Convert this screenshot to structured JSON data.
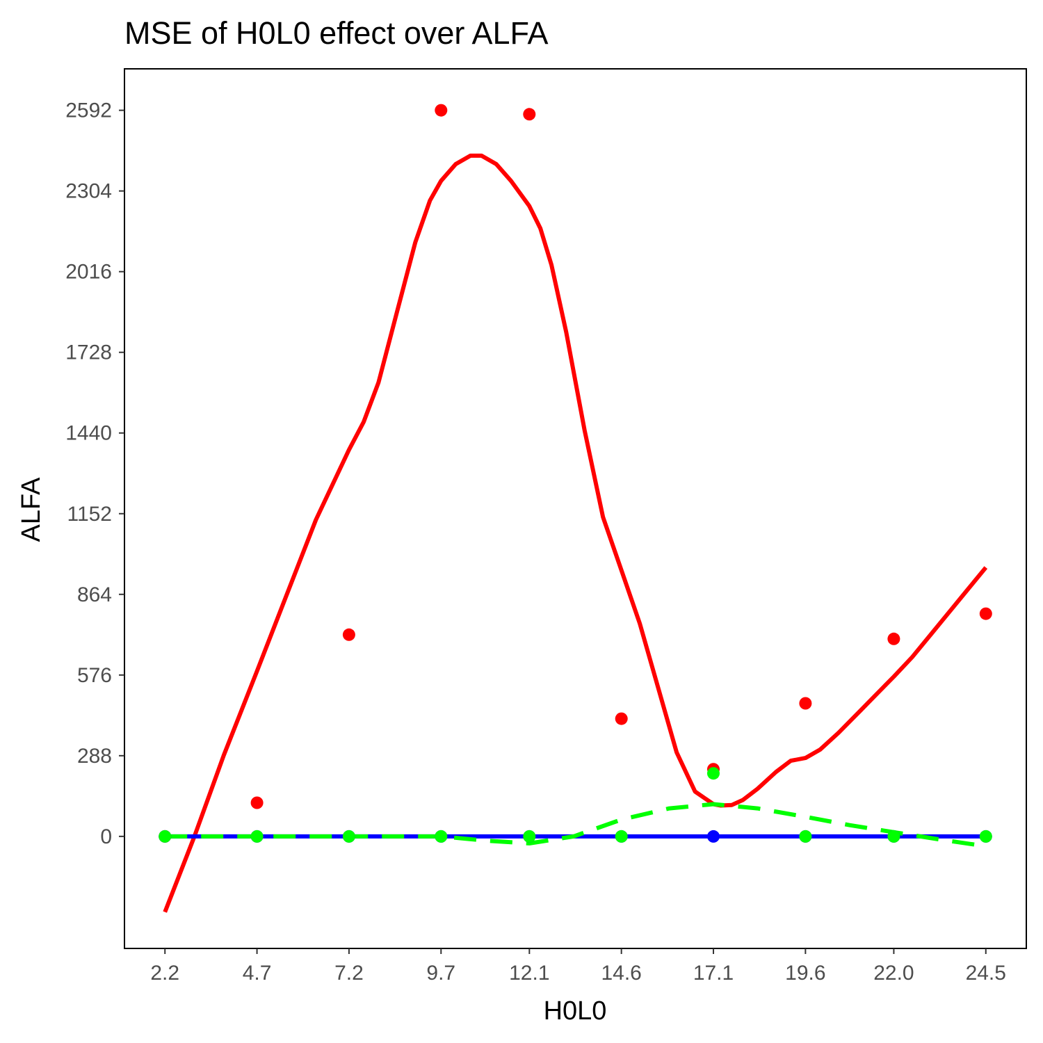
{
  "chart_data": {
    "type": "scatter",
    "title": "MSE of H0L0 effect over  ALFA",
    "xlabel": "H0L0",
    "ylabel": "ALFA",
    "x_ticks": [
      "2.2",
      "4.7",
      "7.2",
      "9.7",
      "12.1",
      "14.6",
      "17.1",
      "19.6",
      "22.0",
      "24.5"
    ],
    "y_ticks": [
      "0",
      "288",
      "576",
      "864",
      "1152",
      "1440",
      "1728",
      "2016",
      "2304",
      "2592"
    ],
    "xlim": [
      1.1,
      25.6
    ],
    "ylim": [
      -400,
      2740
    ],
    "grid": false,
    "legend": "none",
    "x": [
      2.2,
      4.7,
      7.2,
      9.7,
      12.1,
      14.6,
      17.1,
      19.6,
      22.0,
      24.5
    ],
    "series": [
      {
        "color": "#ff0000",
        "line_style": "solid",
        "points": [
          0,
          120,
          720,
          2592,
          2578,
          420,
          240,
          475,
          705,
          795
        ],
        "fit_x": [
          2.2,
          3.0,
          3.8,
          4.7,
          5.5,
          6.3,
          7.2,
          7.6,
          8.0,
          8.5,
          9.0,
          9.4,
          9.7,
          10.1,
          10.5,
          10.8,
          11.2,
          11.6,
          12.1,
          12.4,
          12.7,
          13.1,
          13.6,
          14.1,
          14.6,
          15.1,
          15.6,
          16.1,
          16.6,
          17.1,
          17.3,
          17.6,
          17.9,
          18.3,
          18.8,
          19.2,
          19.6,
          20.0,
          20.5,
          21.1,
          21.7,
          22.0,
          22.5,
          23.0,
          23.5,
          24.0,
          24.5
        ],
        "fit_y": [
          -270,
          0,
          290,
          590,
          860,
          1130,
          1380,
          1480,
          1620,
          1870,
          2120,
          2270,
          2340,
          2400,
          2430,
          2430,
          2400,
          2340,
          2250,
          2170,
          2040,
          1800,
          1450,
          1140,
          950,
          760,
          530,
          300,
          160,
          115,
          110,
          112,
          130,
          170,
          230,
          270,
          280,
          310,
          370,
          450,
          530,
          570,
          640,
          720,
          800,
          880,
          960
        ]
      },
      {
        "color": "#0000ff",
        "line_style": "solid",
        "points": [
          0,
          0,
          0,
          0,
          0,
          0,
          0,
          0,
          0,
          0
        ],
        "fit_x": [
          2.2,
          24.5
        ],
        "fit_y": [
          0,
          0
        ]
      },
      {
        "color": "#00ff00",
        "line_style": "dashed",
        "points": [
          0,
          0,
          0,
          0,
          0,
          0,
          225,
          0,
          0,
          0
        ],
        "fit_x": [
          2.2,
          4.7,
          7.2,
          9.7,
          10.9,
          12.1,
          13.3,
          14.6,
          15.9,
          17.1,
          18.3,
          19.6,
          20.8,
          22.0,
          23.2,
          24.5
        ],
        "fit_y": [
          0,
          0,
          0,
          0,
          -15,
          -25,
          0,
          60,
          100,
          115,
          100,
          70,
          40,
          15,
          -10,
          -35
        ]
      }
    ]
  }
}
